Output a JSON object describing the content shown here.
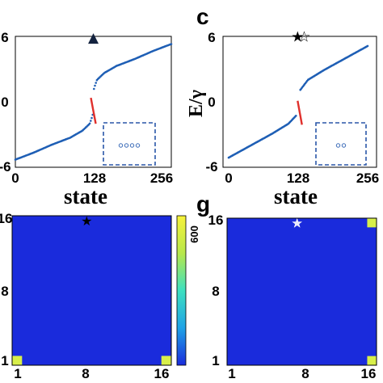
{
  "panel_letters": {
    "c": "c",
    "g": "g"
  },
  "chart_data": [
    {
      "type": "scatter",
      "panel": "spectrum-left",
      "xlabel": "state",
      "ylabel": "",
      "xticks": [
        "0",
        "128",
        "256"
      ],
      "yticks": [
        "-6",
        "0",
        "6"
      ],
      "xlim": [
        0,
        256
      ],
      "ylim": [
        -6,
        6
      ],
      "marker_symbol": "▲",
      "marker_x": 128,
      "marker_y": 6.5,
      "series": [
        {
          "color": "#1f5fb5",
          "x": [
            0,
            30,
            60,
            90,
            110,
            122,
            125,
            127
          ],
          "y": [
            -5.8,
            -5.1,
            -4.3,
            -3.6,
            -2.9,
            -2.2,
            -1.7,
            -1.3
          ]
        },
        {
          "color": "#1f5fb5",
          "x": [
            129,
            131,
            134,
            146,
            166,
            196,
            226,
            256
          ],
          "y": [
            1.3,
            1.7,
            2.2,
            2.9,
            3.6,
            4.3,
            5.1,
            5.8
          ]
        },
        {
          "color": "#e0302c",
          "x": [
            124,
            132
          ],
          "y": [
            0.4,
            -2.2
          ]
        }
      ],
      "inset": {
        "circles": 4
      }
    },
    {
      "type": "scatter",
      "panel": "spectrum-c",
      "xlabel": "state",
      "ylabel": "E/γ",
      "xticks": [
        "0",
        "128",
        "256"
      ],
      "yticks": [
        "-6",
        "0",
        "6"
      ],
      "xlim": [
        0,
        256
      ],
      "ylim": [
        -6,
        6
      ],
      "marker_symbols": [
        "★",
        "☆"
      ],
      "marker_x": [
        127,
        139
      ],
      "marker_y": 6.6,
      "series": [
        {
          "color": "#1f5fb5",
          "x": [
            0,
            40,
            80,
            110,
            124
          ],
          "y": [
            -5.6,
            -4.4,
            -3.2,
            -2.2,
            -1.4
          ]
        },
        {
          "color": "#1f5fb5",
          "x": [
            132,
            146,
            176,
            216,
            256
          ],
          "y": [
            1.2,
            2.2,
            3.2,
            4.4,
            5.6
          ]
        },
        {
          "color": "#e0302c",
          "x": [
            127,
            135
          ],
          "y": [
            0.1,
            -2.3
          ]
        }
      ],
      "inset": {
        "circles": 2
      }
    },
    {
      "type": "heatmap",
      "panel": "heatmap-left",
      "xticks": [
        "1",
        "8",
        "16"
      ],
      "yticks": [
        "1",
        "8",
        "16"
      ],
      "grid": 16,
      "background": "#1a2bdc",
      "hot_cells": [
        {
          "x": 1,
          "y": 1,
          "color": "#d8ef4a"
        },
        {
          "x": 16,
          "y": 1,
          "color": "#d8ef4a"
        }
      ],
      "star": {
        "x": 8,
        "y": 16,
        "symbol": "★"
      },
      "colorbar": {
        "max_label": "600",
        "colors": [
          "#1a2bdc",
          "#1fa3e6",
          "#3de0c0",
          "#b8e84a",
          "#f7f23a"
        ]
      }
    },
    {
      "type": "heatmap",
      "panel": "heatmap-g",
      "xticks": [
        "1",
        "8",
        "16"
      ],
      "yticks": [
        "1",
        "8",
        "16"
      ],
      "grid": 16,
      "background": "#1a2bdc",
      "hot_cells": [
        {
          "x": 16,
          "y": 16,
          "color": "#d8ef4a"
        },
        {
          "x": 16,
          "y": 1,
          "color": "#d8ef4a"
        }
      ],
      "star": {
        "x": 8,
        "y": 16,
        "symbol": "☆"
      }
    }
  ]
}
